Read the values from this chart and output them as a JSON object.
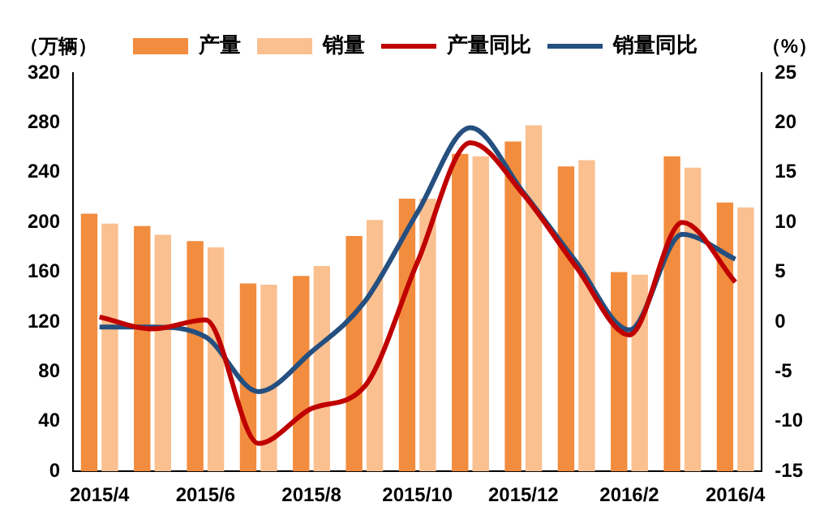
{
  "chart_data": {
    "type": "bar",
    "ylabel": "（万辆）",
    "y2label": "（%）",
    "categories": [
      "2015/4",
      null,
      "2015/6",
      null,
      "2015/8",
      null,
      "2015/10",
      null,
      "2015/12",
      null,
      "2016/2",
      null,
      "2016/4"
    ],
    "series": [
      {
        "name": "产量",
        "color": "#f28c3e",
        "values": [
          207,
          197,
          185,
          151,
          157,
          189,
          219,
          255,
          265,
          245,
          160,
          253,
          216
        ]
      },
      {
        "name": "销量",
        "color": "#fac090",
        "values": [
          199,
          190,
          180,
          150,
          165,
          202,
          219,
          253,
          278,
          250,
          158,
          244,
          212
        ]
      },
      {
        "name": "产量同比",
        "type": "line",
        "axis": "y2",
        "color": "#c00000",
        "values": [
          0.5,
          -0.7,
          0.2,
          -12.2,
          -8.7,
          -6.5,
          6,
          18,
          12.8,
          5.5,
          -1.3,
          10,
          4
        ]
      },
      {
        "name": "销量同比",
        "type": "line",
        "axis": "y2",
        "color": "#254f7f",
        "values": [
          -0.5,
          -0.5,
          -1.5,
          -7,
          -3,
          2,
          11,
          19.5,
          13,
          6,
          -0.8,
          8.8,
          6.3
        ]
      }
    ],
    "ylim": [
      0,
      320
    ],
    "yticks": [
      0,
      40,
      80,
      120,
      160,
      200,
      240,
      280,
      320
    ],
    "y2lim": [
      -15,
      25
    ],
    "y2ticks": [
      -15,
      -10,
      -5,
      0,
      5,
      10,
      15,
      20,
      25
    ],
    "grid": false,
    "legend": "top",
    "marker": "none",
    "line_style": "solid"
  }
}
